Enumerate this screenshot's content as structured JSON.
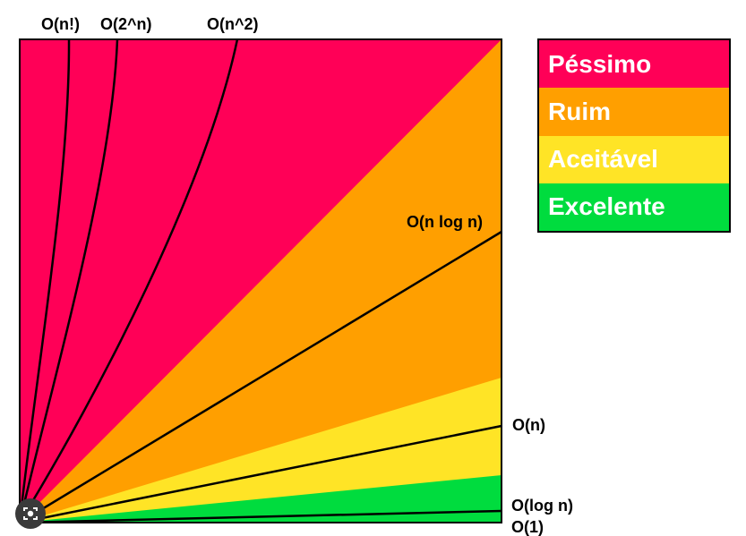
{
  "colors": {
    "pessimo": "#FF0057",
    "ruim": "#FF9F00",
    "aceitavel": "#FFE426",
    "excelente": "#00DC3E"
  },
  "curves": {
    "factorial": "O(n!)",
    "exponential": "O(2^n)",
    "quadratic": "O(n^2)",
    "nlogn": "O(n log n)",
    "linear": "O(n)",
    "log": "O(log n)",
    "constant": "O(1)"
  },
  "legend": [
    {
      "label": "Péssimo",
      "color": "#FF0057"
    },
    {
      "label": "Ruim",
      "color": "#FF9F00"
    },
    {
      "label": "Aceitável",
      "color": "#FFE426"
    },
    {
      "label": "Excelente",
      "color": "#00DC3E"
    }
  ],
  "overlay": {
    "camera_icon": "camera-lens-icon"
  }
}
